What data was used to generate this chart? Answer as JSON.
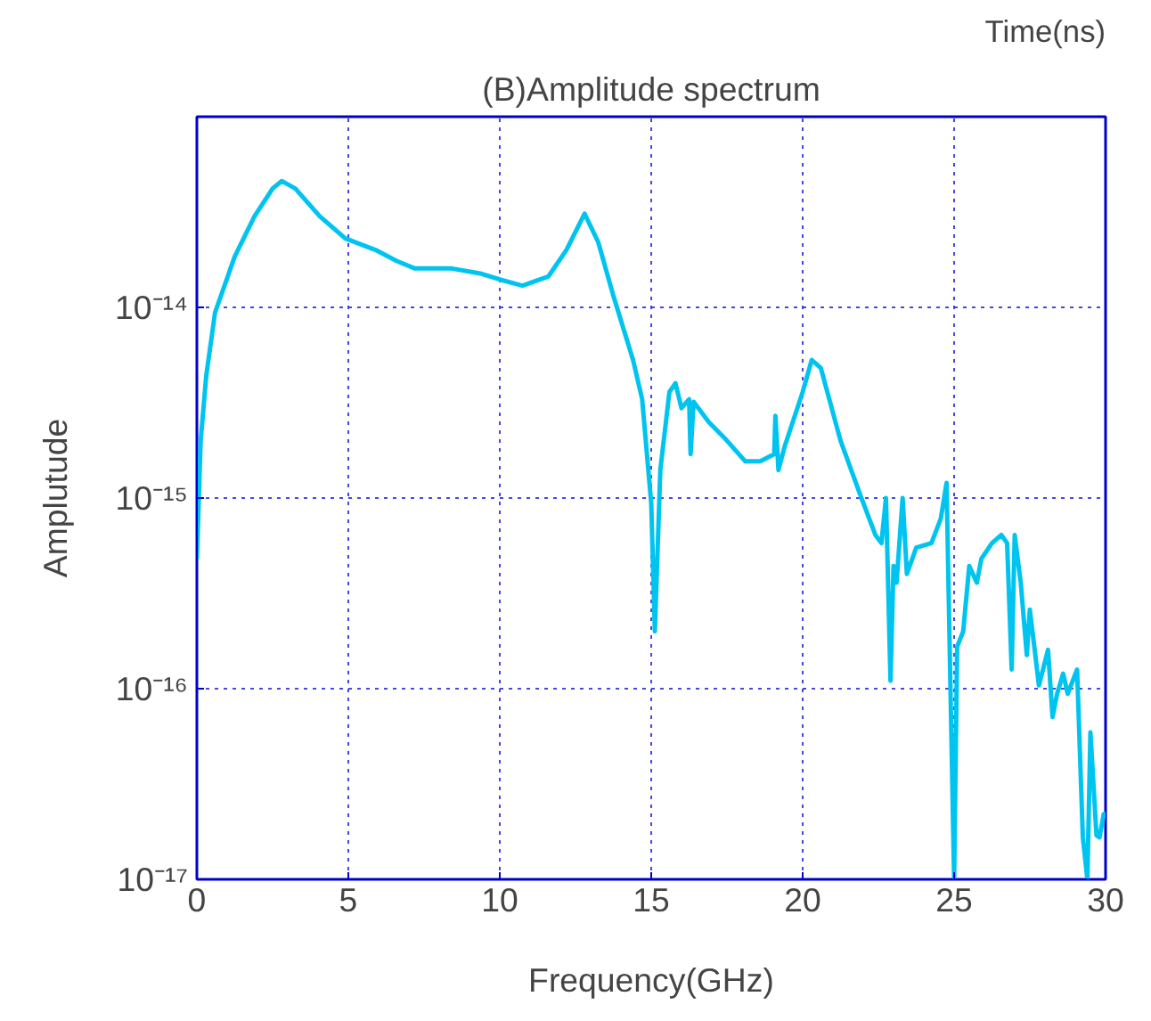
{
  "chart_data": {
    "type": "line",
    "title": "(B)Amplitude spectrum",
    "annotations": [
      "Time(ns)"
    ],
    "xlabel": "Frequency(GHz)",
    "ylabel": "Amplutude",
    "log": "y",
    "grid": true,
    "line_style": "solid",
    "marker": "none",
    "xlim": [
      0,
      30
    ],
    "xticks": [
      0,
      5,
      10,
      15,
      20,
      25,
      30
    ],
    "ylim": [
      1e-17,
      1e-13
    ],
    "yticks": [
      {
        "value": 1e-17,
        "label": "10⁻¹⁷"
      },
      {
        "value": 1e-16,
        "label": "10⁻¹⁶"
      },
      {
        "value": 1e-15,
        "label": "10⁻¹⁵"
      },
      {
        "value": 1e-14,
        "label": "10⁻¹⁴"
      }
    ],
    "series": [
      {
        "color": "#00c4f0",
        "x": [
          0,
          0.125,
          0.31,
          0.6,
          1.25,
          1.9,
          2.5,
          2.8,
          3.25,
          4.06,
          4.9,
          5.9,
          6.6,
          7.2,
          8.4,
          9.4,
          10,
          10.75,
          11.6,
          12.2,
          12.8,
          13.25,
          13.75,
          14.4,
          14.7,
          15.0,
          15.12,
          15.3,
          15.6,
          15.8,
          16.0,
          16.25,
          16.3,
          16.4,
          16.9,
          17.5,
          18.1,
          18.6,
          19.06,
          19.1,
          19.2,
          19.4,
          20.0,
          20.3,
          20.6,
          21.25,
          21.9,
          22.4,
          22.6,
          22.75,
          22.9,
          23.0,
          23.1,
          23.3,
          23.44,
          23.75,
          24.25,
          24.56,
          24.75,
          25.0,
          25.1,
          25.3,
          25.5,
          25.75,
          25.9,
          26.25,
          26.56,
          26.75,
          26.9,
          27.0,
          27.2,
          27.4,
          27.5,
          27.8,
          28.1,
          28.25,
          28.4,
          28.6,
          28.75,
          29.06,
          29.25,
          29.4,
          29.5,
          29.7,
          29.8,
          29.94,
          30
        ],
        "values": [
          4.8e-16,
          2e-15,
          4.4e-15,
          9.4e-15,
          1.85e-14,
          3e-14,
          4.2e-14,
          4.6e-14,
          4.2e-14,
          3e-14,
          2.3e-14,
          2e-14,
          1.75e-14,
          1.6e-14,
          1.6e-14,
          1.5e-14,
          1.4e-14,
          1.3e-14,
          1.45e-14,
          2e-14,
          3.1e-14,
          2.2e-14,
          1.15e-14,
          5.3e-15,
          3.3e-15,
          9.4e-16,
          2e-16,
          1.4e-15,
          3.6e-15,
          4e-15,
          2.96e-15,
          3.3e-15,
          1.7e-15,
          3.2e-15,
          2.5e-15,
          2e-15,
          1.56e-15,
          1.56e-15,
          1.7e-15,
          2.7e-15,
          1.4e-15,
          1.85e-15,
          3.6e-15,
          5.3e-15,
          4.8e-15,
          2e-15,
          1.04e-15,
          6.4e-16,
          5.8e-16,
          1e-15,
          1.1e-16,
          4.4e-16,
          3.6e-16,
          1e-15,
          4e-16,
          5.5e-16,
          5.8e-16,
          7.8e-16,
          1.2e-15,
          1e-17,
          1.66e-16,
          2e-16,
          4.4e-16,
          3.6e-16,
          4.8e-16,
          5.8e-16,
          6.4e-16,
          5.8e-16,
          1.26e-16,
          6.4e-16,
          3.6e-16,
          1.5e-16,
          2.6e-16,
          1.04e-16,
          1.6e-16,
          7.1e-17,
          9.4e-17,
          1.2e-16,
          9.4e-17,
          1.26e-16,
          1.66e-17,
          1e-17,
          5.9e-17,
          1.7e-17,
          1.66e-17,
          2.2e-17,
          2.2e-17
        ]
      }
    ]
  }
}
